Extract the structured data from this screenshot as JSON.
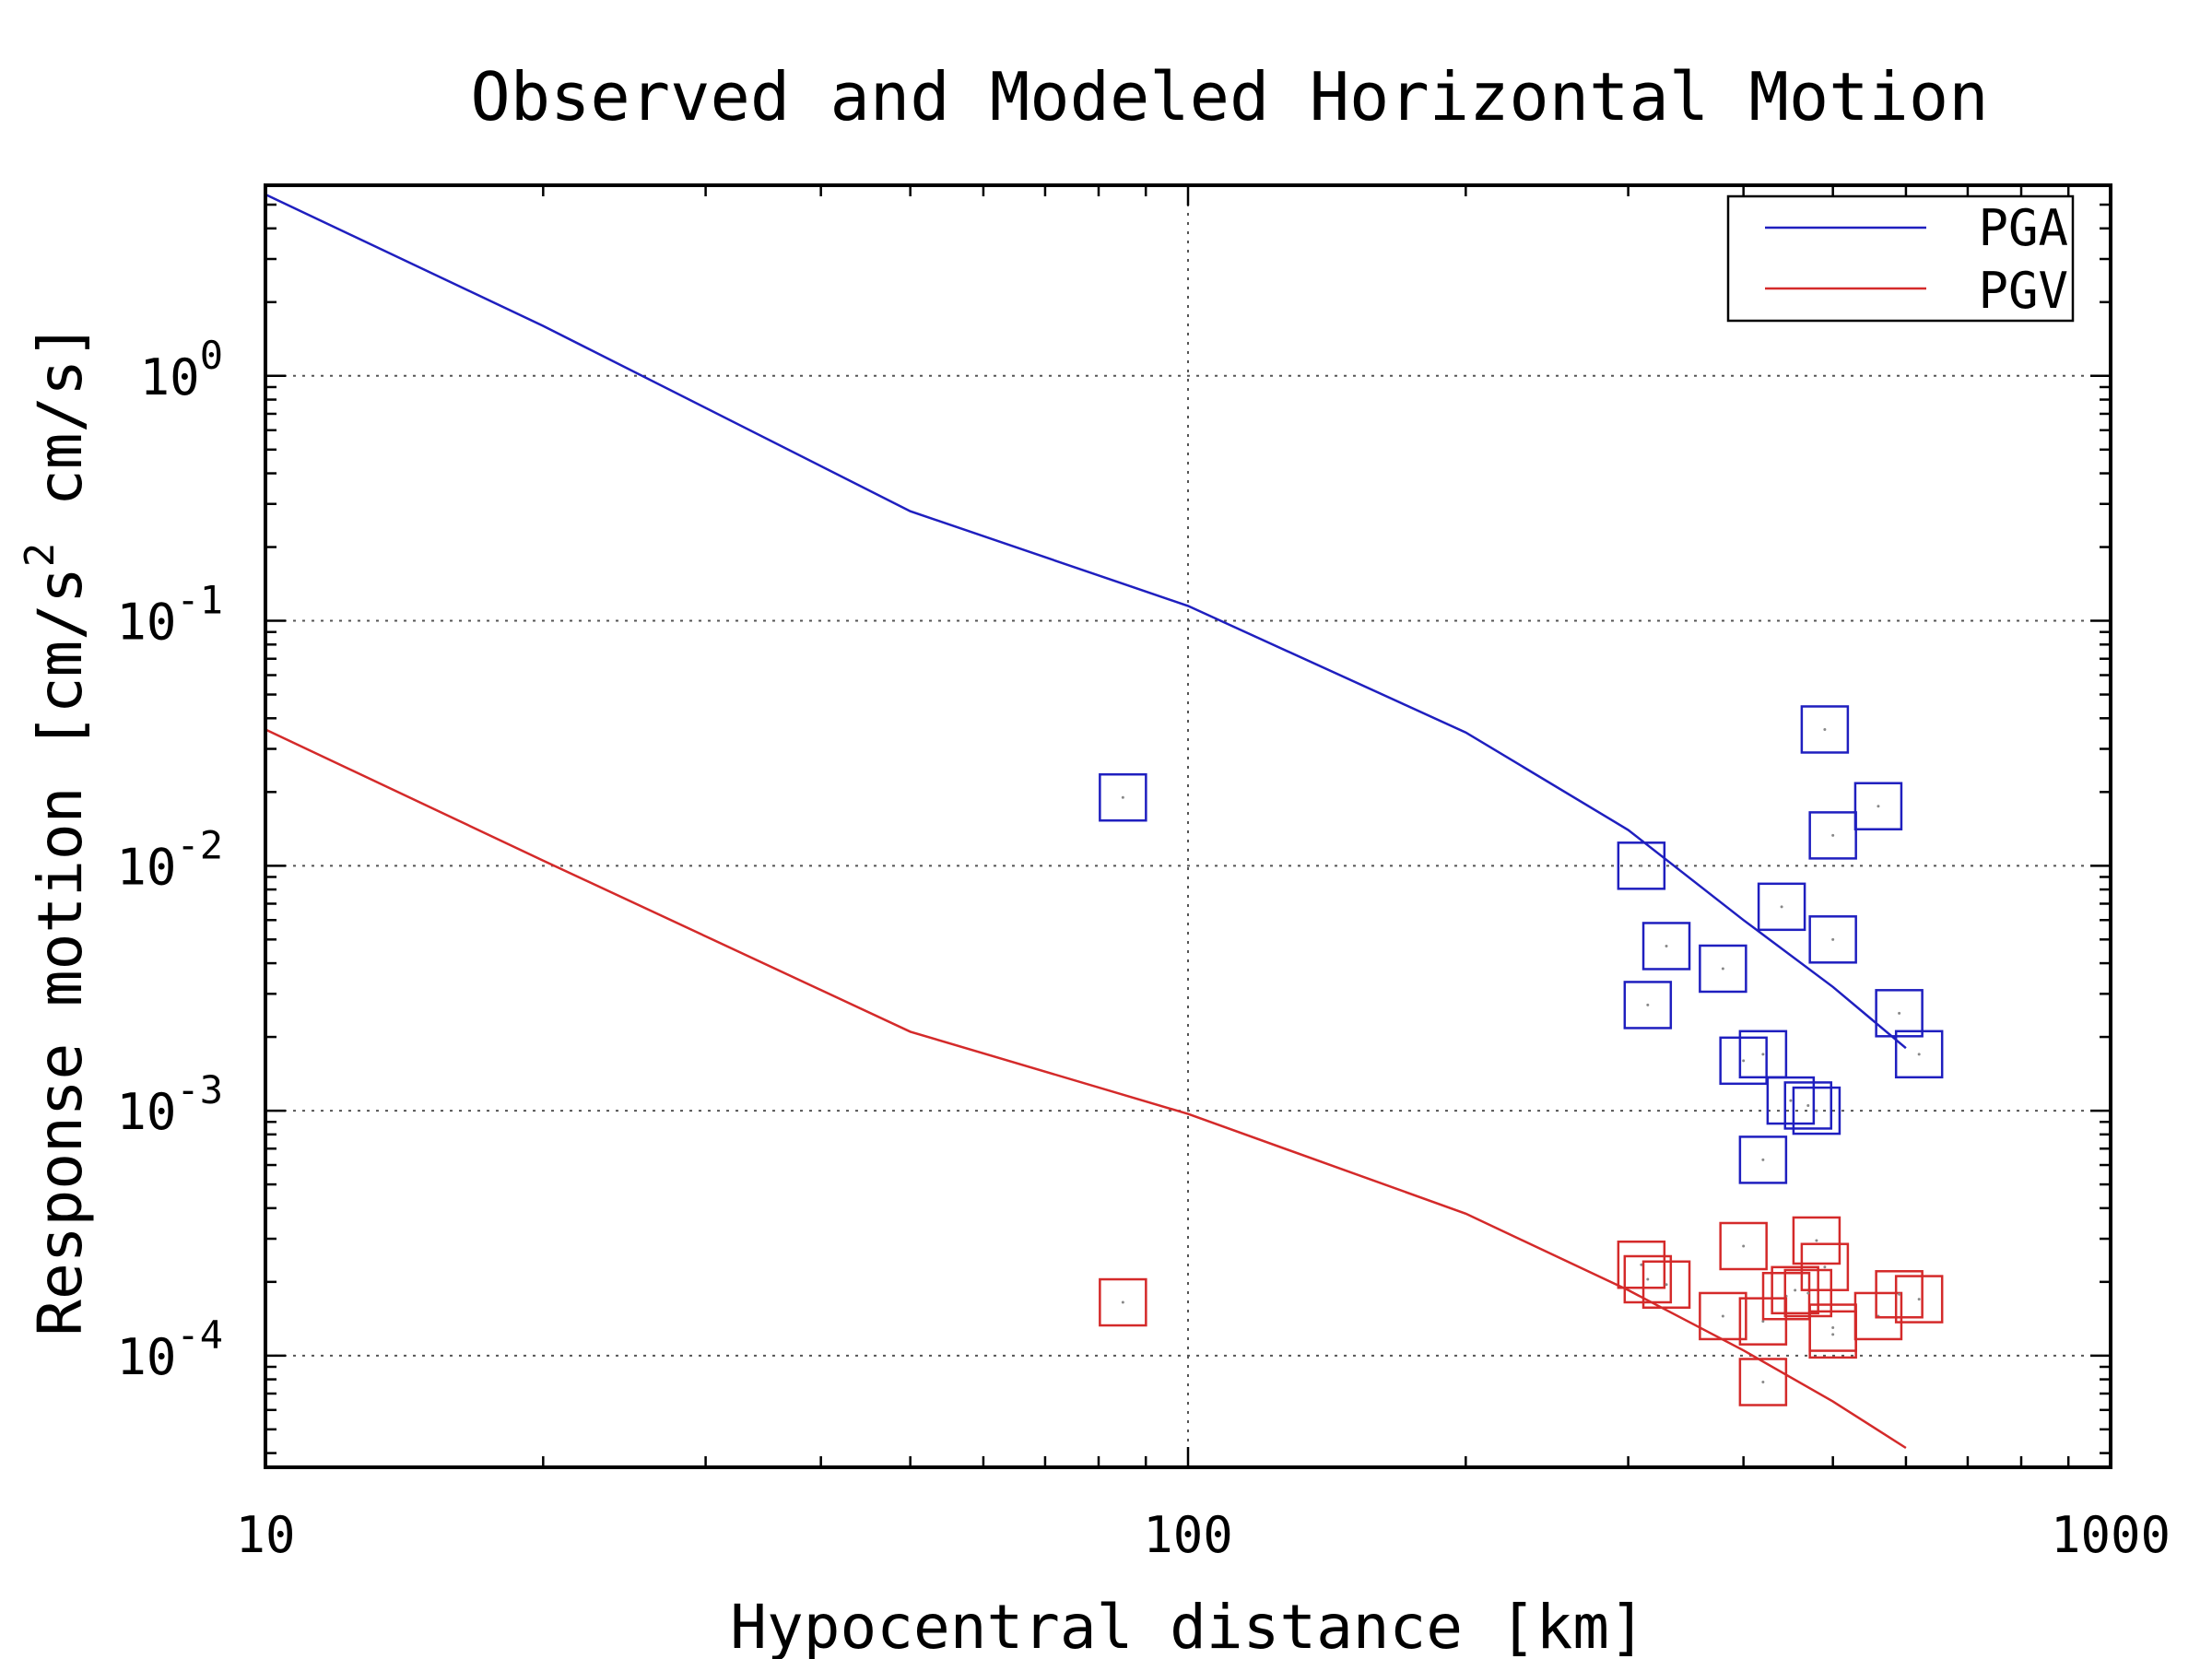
{
  "chart_data": {
    "type": "scatter",
    "title": "Observed and Modeled Horizontal Motion",
    "xlabel": "Hypocentral distance [km]",
    "ylabel": {
      "before": "Response motion [cm/s",
      "sup": "2",
      "after": " cm/s]"
    },
    "x_scale": "log",
    "y_scale": "log",
    "xlim": [
      10,
      1000
    ],
    "ylim": [
      3.5e-05,
      6
    ],
    "x_ticks": [
      {
        "value": 10,
        "label": "10"
      },
      {
        "value": 100,
        "label": "100"
      },
      {
        "value": 1000,
        "label": "1000"
      }
    ],
    "y_ticks": [
      {
        "value": 0.0001,
        "base": "10",
        "exp": "-4"
      },
      {
        "value": 0.001,
        "base": "10",
        "exp": "-3"
      },
      {
        "value": 0.01,
        "base": "10",
        "exp": "-2"
      },
      {
        "value": 0.1,
        "base": "10",
        "exp": "-1"
      },
      {
        "value": 1,
        "base": "10",
        "exp": "0"
      }
    ],
    "grid": true,
    "legend": {
      "position": "top-right"
    },
    "series": [
      {
        "name": "PGA",
        "color": "#1f1fbf",
        "model": [
          [
            10,
            5.5
          ],
          [
            20,
            1.6
          ],
          [
            50,
            0.28
          ],
          [
            100,
            0.115
          ],
          [
            200,
            0.035
          ],
          [
            300,
            0.014
          ],
          [
            400,
            0.006
          ],
          [
            500,
            0.0032
          ],
          [
            600,
            0.0018
          ]
        ],
        "observed": [
          [
            85,
            0.019
          ],
          [
            310,
            0.01
          ],
          [
            330,
            0.0047
          ],
          [
            380,
            0.0038
          ],
          [
            315,
            0.0027
          ],
          [
            440,
            0.0068
          ],
          [
            500,
            0.005
          ],
          [
            490,
            0.036
          ],
          [
            500,
            0.0133
          ],
          [
            560,
            0.0175
          ],
          [
            590,
            0.0025
          ],
          [
            620,
            0.0017
          ],
          [
            400,
            0.0016
          ],
          [
            420,
            0.0017
          ],
          [
            450,
            0.0011
          ],
          [
            470,
            0.00105
          ],
          [
            480,
            0.001
          ],
          [
            420,
            0.00063
          ]
        ]
      },
      {
        "name": "PGV",
        "color": "#d42a2a",
        "model": [
          [
            10,
            0.036
          ],
          [
            20,
            0.0105
          ],
          [
            50,
            0.0021
          ],
          [
            100,
            0.00097
          ],
          [
            200,
            0.00038
          ],
          [
            300,
            0.000185
          ],
          [
            400,
            0.000105
          ],
          [
            500,
            6.5e-05
          ],
          [
            600,
            4.2e-05
          ]
        ],
        "observed": [
          [
            85,
            0.000165
          ],
          [
            310,
            0.000235
          ],
          [
            315,
            0.000205
          ],
          [
            330,
            0.000195
          ],
          [
            380,
            0.000145
          ],
          [
            400,
            0.00028
          ],
          [
            420,
            0.000138
          ],
          [
            420,
            7.8e-05
          ],
          [
            445,
            0.000175
          ],
          [
            455,
            0.000185
          ],
          [
            470,
            0.00018
          ],
          [
            480,
            0.000295
          ],
          [
            490,
            0.00023
          ],
          [
            500,
            0.00013
          ],
          [
            500,
            0.000122
          ],
          [
            560,
            0.000145
          ],
          [
            590,
            0.000178
          ],
          [
            620,
            0.00017
          ]
        ]
      }
    ]
  }
}
